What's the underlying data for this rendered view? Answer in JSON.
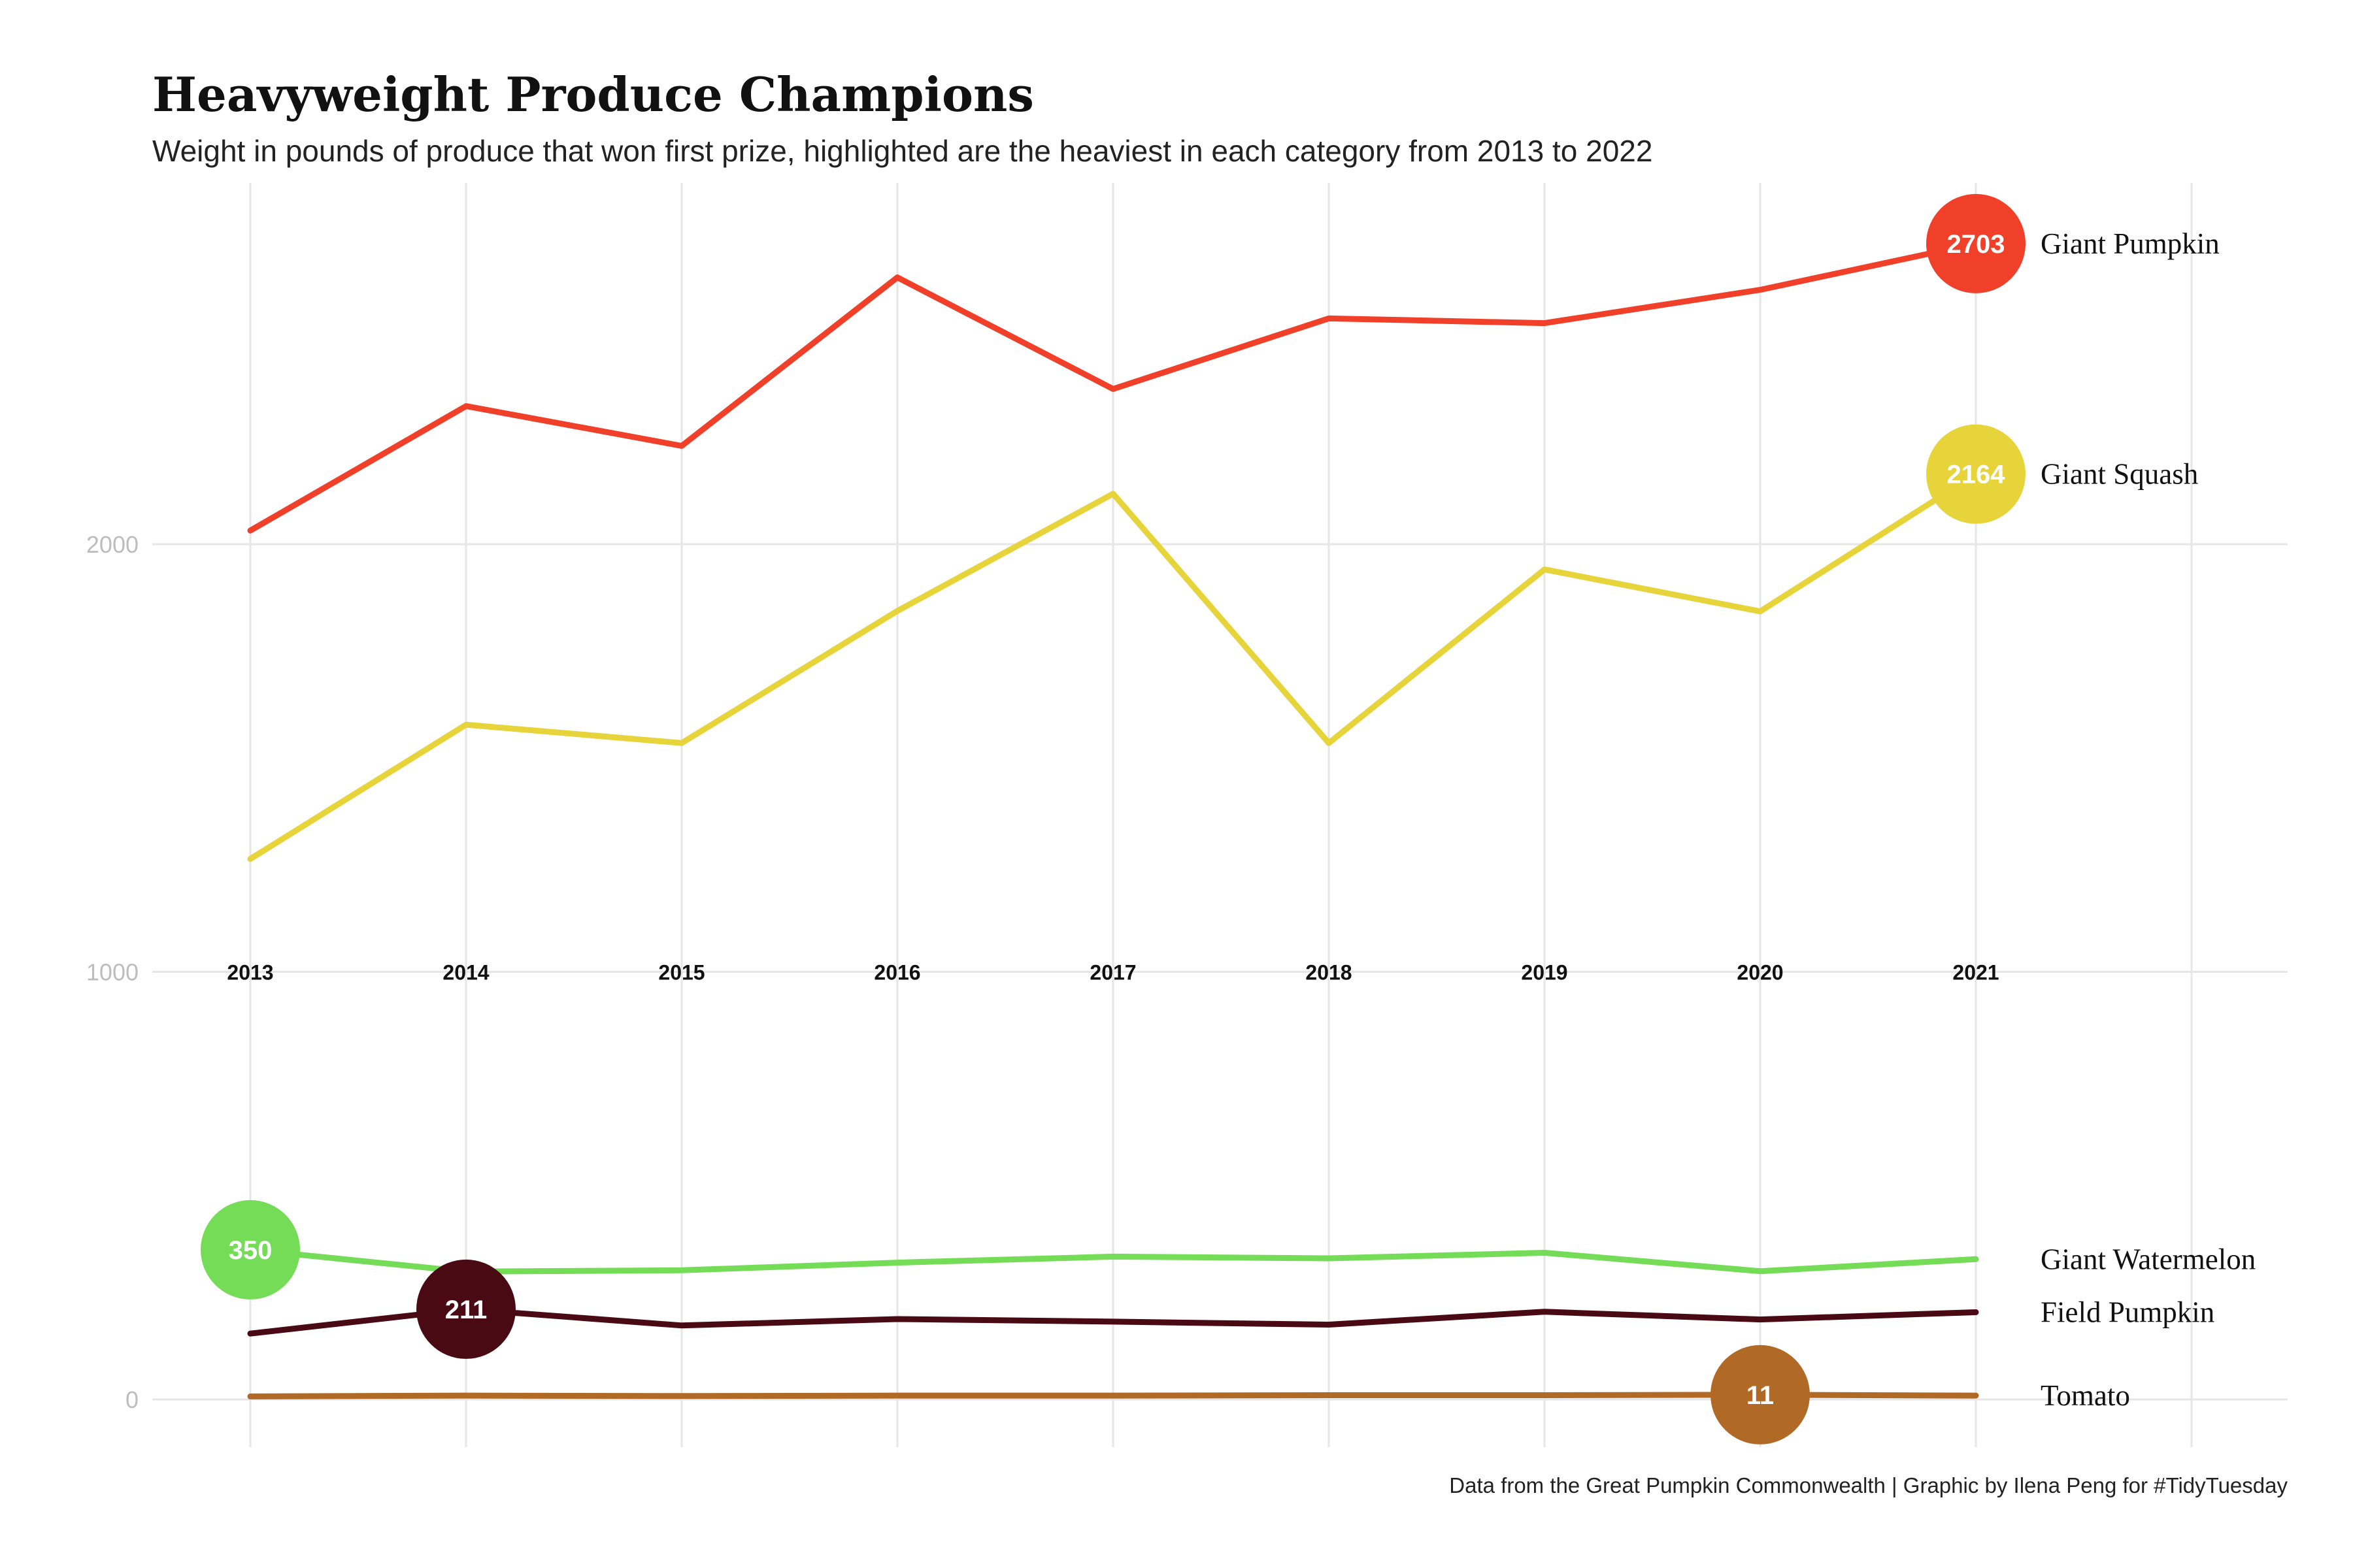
{
  "chart_data": {
    "type": "line",
    "title": "Heavyweight Produce Champions",
    "subtitle": "Weight in pounds of produce that won first prize, highlighted are the heaviest in each category from 2013 to 2022",
    "caption": "Data from the Great Pumpkin Commonwealth | Graphic by Ilena Peng for #TidyTuesday",
    "xlabel": "",
    "ylabel": "",
    "x": [
      "2013",
      "2014",
      "2015",
      "2016",
      "2017",
      "2018",
      "2019",
      "2020",
      "2021"
    ],
    "y_ticks": [
      "0",
      "1000",
      "2000"
    ],
    "ylim": [
      -120,
      2840
    ],
    "grid": true,
    "series": [
      {
        "name": "Giant Pumpkin",
        "color": "#f0402a",
        "values": [
          2032,
          2323,
          2230,
          2624,
          2363,
          2528,
          2517,
          2595,
          2703
        ],
        "highlight": {
          "index": 8,
          "label": "2703"
        }
      },
      {
        "name": "Giant Squash",
        "color": "#e6d43a",
        "values": [
          1264,
          1578,
          1535,
          1844,
          2118,
          1535,
          1941,
          1843,
          2164
        ],
        "highlight": {
          "index": 8,
          "label": "2164"
        }
      },
      {
        "name": "Giant Watermelon",
        "color": "#74dc57",
        "values": [
          350,
          299,
          302,
          320,
          334,
          330,
          343,
          300,
          328
        ],
        "highlight": {
          "index": 0,
          "label": "350"
        }
      },
      {
        "name": "Field Pumpkin",
        "color": "#4a0a14",
        "values": [
          154,
          211,
          173,
          188,
          182,
          175,
          205,
          187,
          204
        ],
        "highlight": {
          "index": 1,
          "label": "211"
        }
      },
      {
        "name": "Tomato",
        "color": "#b06a26",
        "values": [
          7,
          9,
          8,
          9,
          9,
          10,
          10,
          11,
          9
        ],
        "highlight": {
          "index": 7,
          "label": "11"
        }
      }
    ]
  }
}
